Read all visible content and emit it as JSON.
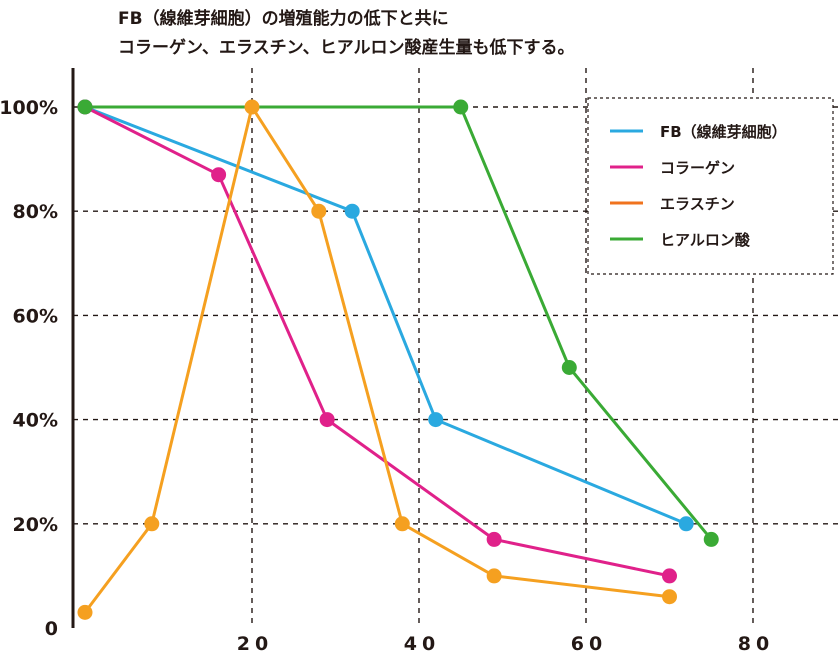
{
  "title_lines": [
    "FB（線維芽細胞）の増殖能力の低下と共に",
    "コラーゲン、エラスチン、ヒアルロン酸産生量も低下する。"
  ],
  "chart_data": {
    "type": "line",
    "title": "FB（線維芽細胞）の増殖能力の低下と共に コラーゲン、エラスチン、ヒアルロン酸産生量も低下する。",
    "xlabel": "",
    "ylabel": "",
    "xlim": [
      0,
      95
    ],
    "ylim": [
      0,
      100
    ],
    "x_ticks": [
      20,
      40,
      60,
      80
    ],
    "x_tick_labels": [
      "20",
      "40",
      "60",
      "80"
    ],
    "y_ticks": [
      0,
      20,
      40,
      60,
      80,
      100
    ],
    "y_tick_labels": [
      "0",
      "20%",
      "40%",
      "60%",
      "80%",
      "100%"
    ],
    "grid": true,
    "legend_position": "top-right",
    "series": [
      {
        "name": "FB（線維芽細胞）",
        "color": "#2aa9e0",
        "x": [
          0,
          32,
          42,
          72
        ],
        "y": [
          100,
          80,
          40,
          20
        ]
      },
      {
        "name": "コラーゲン",
        "color": "#e0218a",
        "x": [
          0,
          16,
          29,
          49,
          70
        ],
        "y": [
          100,
          87,
          40,
          17,
          10
        ]
      },
      {
        "name": "エラスチン",
        "color": "#f5a020",
        "legend_color": "#f0731e",
        "x": [
          0,
          8,
          20,
          28,
          38,
          49,
          70
        ],
        "y": [
          3,
          20,
          100,
          80,
          20,
          10,
          6
        ]
      },
      {
        "name": "ヒアルロン酸",
        "color": "#3aaa35",
        "x": [
          0,
          45,
          58,
          75
        ],
        "y": [
          100,
          100,
          50,
          17
        ]
      }
    ]
  }
}
